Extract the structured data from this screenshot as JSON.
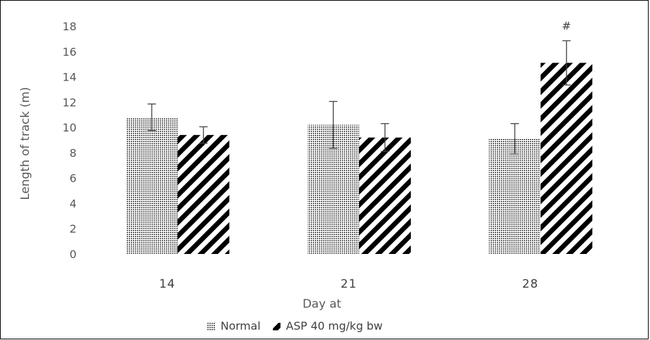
{
  "chart_data": {
    "type": "bar",
    "title": "",
    "xlabel": "Day at",
    "ylabel": "Length of track (m)",
    "ylim": [
      0,
      18
    ],
    "yticks": [
      0,
      2,
      4,
      6,
      8,
      10,
      12,
      14,
      16,
      18
    ],
    "categories": [
      "14",
      "21",
      "28"
    ],
    "series": [
      {
        "name": "Normal",
        "pattern": "dots",
        "values": [
          10.8,
          10.2,
          9.1
        ],
        "errors": [
          1.05,
          1.85,
          1.2
        ]
      },
      {
        "name": "ASP 40 mg/kg bw",
        "pattern": "diagonal-stripes",
        "values": [
          9.4,
          9.2,
          15.1
        ],
        "errors": [
          0.65,
          1.1,
          1.75
        ]
      }
    ],
    "annotations": [
      {
        "category": "28",
        "series": "ASP 40 mg/kg bw",
        "text": "#"
      }
    ],
    "grid": false,
    "legend_position": "bottom"
  },
  "colors": {
    "bar_fill": "#000000",
    "error_bar": "#404040",
    "axis_text": "#595959"
  }
}
